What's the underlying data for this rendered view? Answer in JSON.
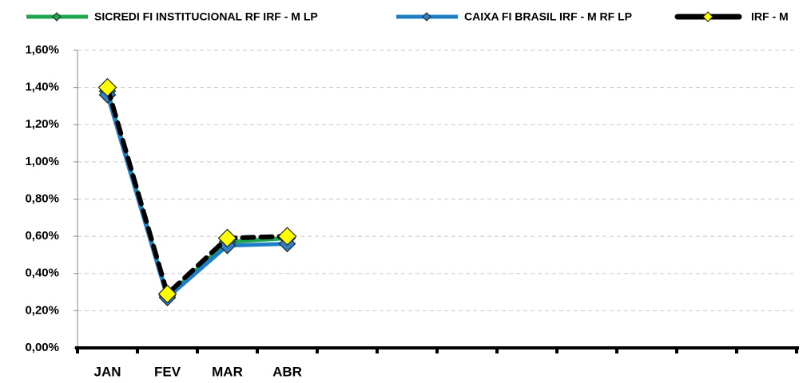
{
  "chart_data": {
    "type": "line",
    "categories": [
      "JAN",
      "FEV",
      "MAR",
      "ABR",
      null,
      null,
      null,
      null,
      null,
      null,
      null,
      null
    ],
    "series": [
      {
        "name": "SICREDI FI INSTITUCIONAL RF IRF - M LP",
        "color": "#1fa64e",
        "marker_color": "#1fa64e",
        "values": [
          1.38,
          0.28,
          0.57,
          0.59,
          null,
          null,
          null,
          null,
          null,
          null,
          null,
          null
        ]
      },
      {
        "name": "CAIXA FI BRASIL IRF - M RF LP",
        "color": "#1f7fc4",
        "marker_color": "#2f80c8",
        "values": [
          1.36,
          0.27,
          0.55,
          0.56,
          null,
          null,
          null,
          null,
          null,
          null,
          null,
          null
        ]
      },
      {
        "name": "IRF - M",
        "color": "#000000",
        "marker_color": "#ffff00",
        "dashed": true,
        "values": [
          1.4,
          0.29,
          0.59,
          0.6,
          null,
          null,
          null,
          null,
          null,
          null,
          null,
          null
        ]
      }
    ],
    "ylim": [
      0,
      1.6
    ],
    "yticks": [
      {
        "value": 0,
        "label": "0,00%"
      },
      {
        "value": 0.2,
        "label": "0,20%"
      },
      {
        "value": 0.4,
        "label": "0,40%"
      },
      {
        "value": 0.6,
        "label": "0,60%"
      },
      {
        "value": 0.8,
        "label": "0,80%"
      },
      {
        "value": 1.0,
        "label": "1,00%"
      },
      {
        "value": 1.2,
        "label": "1,20%"
      },
      {
        "value": 1.4,
        "label": "1,40%"
      },
      {
        "value": 1.6,
        "label": "1,60%"
      }
    ],
    "grid": true,
    "legend": "top"
  }
}
